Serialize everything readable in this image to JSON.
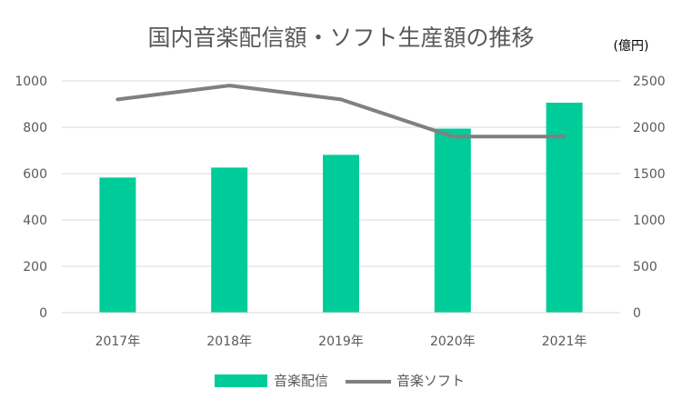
{
  "chart_data": {
    "type": "bar",
    "title": "国内音楽配信額・ソフト生産額の推移",
    "unit_label": "(億円)",
    "categories": [
      "2017年",
      "2018年",
      "2019年",
      "2020年",
      "2021年"
    ],
    "series": [
      {
        "name": "音楽配信",
        "type": "bar",
        "axis": "left",
        "color": "#00cc99",
        "values": [
          583,
          626,
          681,
          794,
          906
        ]
      },
      {
        "name": "音楽ソフト",
        "type": "line",
        "axis": "right",
        "color": "#808080",
        "values": [
          2300,
          2450,
          2300,
          1900,
          1900
        ]
      }
    ],
    "y_left": {
      "min": 0,
      "max": 1000,
      "ticks": [
        "0",
        "200",
        "400",
        "600",
        "800",
        "1000"
      ]
    },
    "y_right": {
      "min": 0,
      "max": 2500,
      "ticks": [
        "0",
        "500",
        "1000",
        "1500",
        "2000",
        "2500"
      ]
    },
    "grid": true,
    "legend_position": "bottom"
  }
}
